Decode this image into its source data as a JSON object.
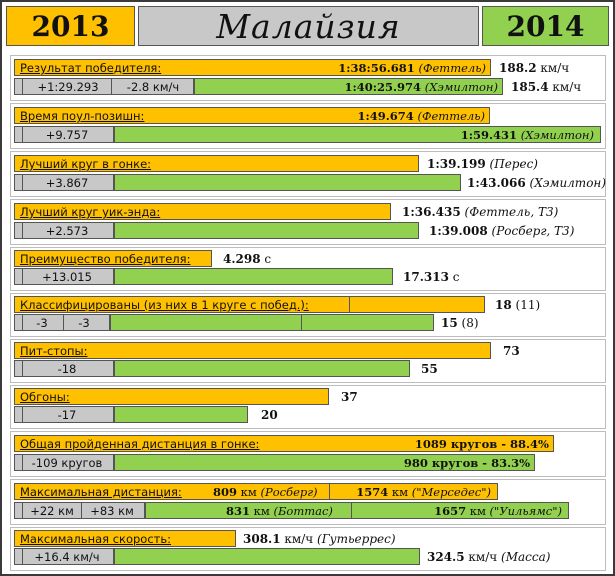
{
  "header": {
    "year_left": "2013",
    "title": "Малайзия",
    "year_right": "2014"
  },
  "colors": {
    "y2013": "#ffc000",
    "y2014": "#92d050",
    "delta": "#c8c8c8"
  },
  "rows": {
    "winner": {
      "label": "Результат победителя:",
      "t13": "1:38:56.681",
      "d13": "(Феттель)",
      "s13": "188.2",
      "u13": "км/ч",
      "delta1": "+1:29.293",
      "delta2": "-2.8 км/ч",
      "t14": "1:40:25.974",
      "d14": "(Хэмилтон)",
      "s14": "185.4",
      "u14": "км/ч"
    },
    "pole": {
      "label": "Время поул-позишн:",
      "t13": "1:49.674",
      "d13": "(Феттель)",
      "delta": "+9.757",
      "t14": "1:59.431",
      "d14": "(Хэмилтон)"
    },
    "fastest_race": {
      "label": "Лучший круг в гонке:",
      "t13": "1:39.199",
      "d13": "(Перес)",
      "delta": "+3.867",
      "t14": "1:43.066",
      "d14": "(Хэмилтон)"
    },
    "fastest_weekend": {
      "label": "Лучший круг уик-энда:",
      "t13": "1:36.435",
      "d13": "(Феттель, Т3)",
      "delta": "+2.573",
      "t14": "1:39.008",
      "d14": "(Росберг, Т3)"
    },
    "margin": {
      "label": "Преимущество победителя:",
      "v13": "4.298",
      "u13": "с",
      "delta": "+13.015",
      "v14": "17.313",
      "u14": "с"
    },
    "classified": {
      "label": "Классифицированы (из них в 1 круге с побед.):",
      "v13": "18",
      "s13": "(11)",
      "delta1": "-3",
      "delta2": "-3",
      "v14": "15",
      "s14": "(8)"
    },
    "pitstops": {
      "label": "Пит-стопы:",
      "v13": "73",
      "delta": "-18",
      "v14": "55"
    },
    "overtakes": {
      "label": "Обгоны:",
      "v13": "37",
      "delta": "-17",
      "v14": "20"
    },
    "distance": {
      "label": "Общая пройденная дистанция в гонке:",
      "v13": "1089 кругов - 88.4%",
      "delta": "-109 кругов",
      "v14": "980 кругов - 83.3%"
    },
    "max_distance": {
      "label": "Максимальная дистанция:",
      "a13": "809",
      "a13u": "км",
      "a13d": "(Росберг)",
      "b13": "1574",
      "b13u": "км",
      "b13d": "(\"Мерседес\")",
      "delta1": "+22 км",
      "delta2": "+83 км",
      "a14": "831",
      "a14u": "км",
      "a14d": "(Боттас)",
      "b14": "1657",
      "b14u": "км",
      "b14d": "(\"Уильямс\")"
    },
    "max_speed": {
      "label": "Максимальная скорость:",
      "v13": "308.1",
      "u13": "км/ч",
      "d13": "(Гутьеррес)",
      "delta": "+16.4 км/ч",
      "v14": "324.5",
      "u14": "км/ч",
      "d14": "(Масса)"
    }
  }
}
